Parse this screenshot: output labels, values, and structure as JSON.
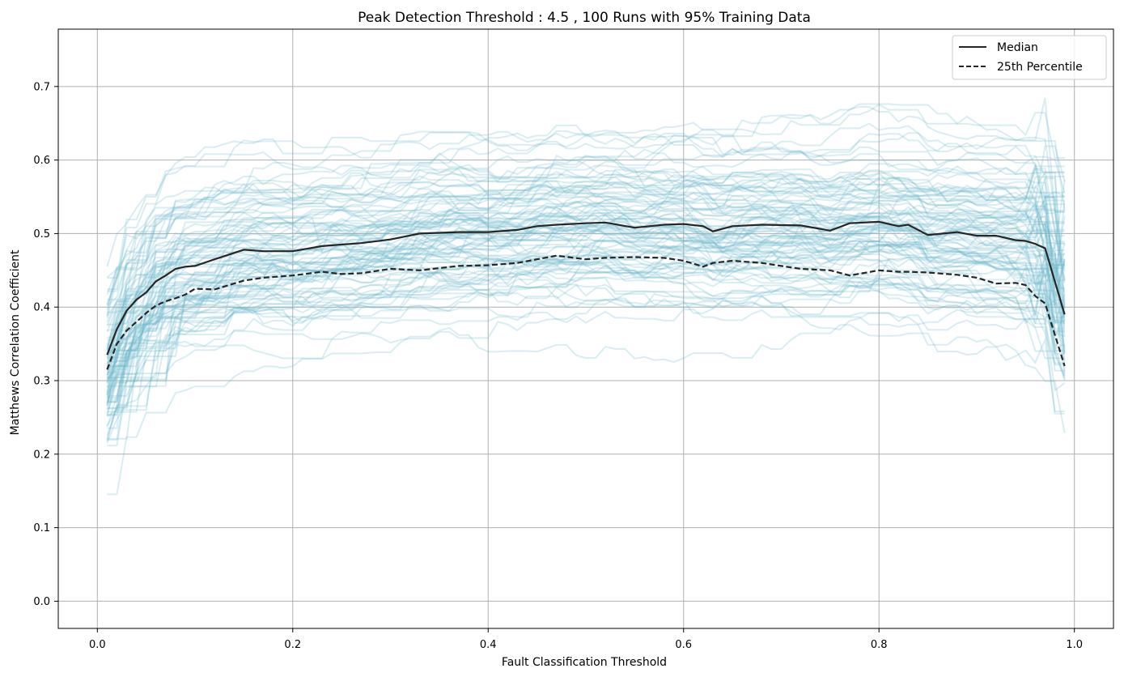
{
  "chart_data": {
    "type": "line",
    "title": "Peak Detection Threshold : 4.5 , 100 Runs with 95% Training Data",
    "xlabel": "Fault Classification Threshold",
    "ylabel": "Matthews Correlation Coefficient",
    "xlim": [
      -0.04,
      1.04
    ],
    "ylim": [
      -0.037,
      0.778
    ],
    "grid": true,
    "legend_position": "top-right",
    "x_ticks": [
      "0.0",
      "0.2",
      "0.4",
      "0.6",
      "0.8",
      "1.0"
    ],
    "y_ticks": [
      "0.0",
      "0.1",
      "0.2",
      "0.3",
      "0.4",
      "0.5",
      "0.6",
      "0.7"
    ],
    "colors": {
      "runs": "#6bb7cc",
      "summary": "#262626",
      "grid": "#b0b0b0"
    },
    "runs_count": 100,
    "runs_note": "100 individual runs drawn as faint light-blue lines",
    "series": [
      {
        "name": "Median",
        "style": "solid",
        "x": [
          0.01,
          0.02,
          0.03,
          0.04,
          0.05,
          0.06,
          0.07,
          0.08,
          0.09,
          0.1,
          0.12,
          0.15,
          0.17,
          0.2,
          0.23,
          0.25,
          0.27,
          0.3,
          0.33,
          0.37,
          0.4,
          0.43,
          0.45,
          0.47,
          0.5,
          0.52,
          0.55,
          0.58,
          0.6,
          0.62,
          0.63,
          0.65,
          0.68,
          0.72,
          0.75,
          0.77,
          0.8,
          0.82,
          0.83,
          0.85,
          0.88,
          0.9,
          0.92,
          0.94,
          0.95,
          0.96,
          0.97,
          0.99
        ],
        "values": [
          0.335,
          0.37,
          0.395,
          0.41,
          0.42,
          0.435,
          0.443,
          0.452,
          0.455,
          0.456,
          0.465,
          0.478,
          0.476,
          0.476,
          0.483,
          0.485,
          0.487,
          0.492,
          0.5,
          0.502,
          0.502,
          0.505,
          0.51,
          0.512,
          0.514,
          0.515,
          0.508,
          0.512,
          0.513,
          0.51,
          0.503,
          0.51,
          0.512,
          0.511,
          0.504,
          0.514,
          0.516,
          0.51,
          0.512,
          0.498,
          0.502,
          0.497,
          0.497,
          0.491,
          0.49,
          0.486,
          0.48,
          0.39
        ]
      },
      {
        "name": "25th Percentile",
        "style": "dashed",
        "x": [
          0.01,
          0.02,
          0.03,
          0.04,
          0.05,
          0.06,
          0.07,
          0.08,
          0.09,
          0.1,
          0.12,
          0.15,
          0.17,
          0.2,
          0.23,
          0.25,
          0.27,
          0.3,
          0.33,
          0.37,
          0.4,
          0.43,
          0.45,
          0.47,
          0.5,
          0.52,
          0.55,
          0.58,
          0.6,
          0.62,
          0.63,
          0.65,
          0.68,
          0.72,
          0.75,
          0.77,
          0.8,
          0.82,
          0.83,
          0.85,
          0.88,
          0.9,
          0.92,
          0.94,
          0.95,
          0.96,
          0.97,
          0.99
        ],
        "values": [
          0.315,
          0.35,
          0.368,
          0.38,
          0.392,
          0.402,
          0.408,
          0.412,
          0.417,
          0.425,
          0.424,
          0.436,
          0.44,
          0.443,
          0.448,
          0.445,
          0.446,
          0.452,
          0.45,
          0.456,
          0.457,
          0.46,
          0.465,
          0.47,
          0.465,
          0.467,
          0.468,
          0.467,
          0.463,
          0.455,
          0.46,
          0.463,
          0.46,
          0.452,
          0.45,
          0.443,
          0.45,
          0.448,
          0.448,
          0.447,
          0.444,
          0.44,
          0.432,
          0.433,
          0.43,
          0.415,
          0.405,
          0.32
        ]
      }
    ]
  }
}
